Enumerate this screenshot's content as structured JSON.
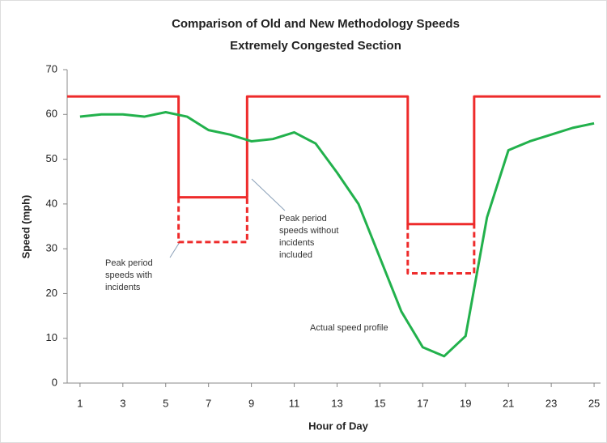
{
  "chart_data": {
    "type": "line",
    "title": [
      "Comparison of Old and New Methodology Speeds",
      "Extremely Congested Section"
    ],
    "xlabel": "Hour of Day",
    "ylabel": "Speed (mph)",
    "xlim": [
      0.4,
      25.3
    ],
    "ylim": [
      0,
      70
    ],
    "xticks": [
      1,
      3,
      5,
      7,
      9,
      11,
      13,
      15,
      17,
      19,
      21,
      23,
      25
    ],
    "yticks": [
      0,
      10,
      20,
      30,
      40,
      50,
      60,
      70
    ],
    "grid": false,
    "series": [
      {
        "color": "#ee2b2b",
        "dash": false,
        "x": [
          0.4,
          5.6,
          5.6,
          8.8,
          8.8,
          16.3,
          16.3,
          19.4,
          19.4,
          25.3
        ],
        "values": [
          64,
          64,
          41.5,
          41.5,
          64,
          64,
          35.5,
          35.5,
          64,
          64
        ]
      },
      {
        "color": "#ee2b2b",
        "dash": true,
        "x": [
          5.6,
          5.6,
          8.8,
          8.8
        ],
        "values": [
          41.5,
          31.5,
          31.5,
          41.5
        ]
      },
      {
        "color": "#ee2b2b",
        "dash": true,
        "x": [
          16.3,
          16.3,
          19.4,
          19.4
        ],
        "values": [
          35.5,
          24.5,
          24.5,
          35.5
        ]
      },
      {
        "color": "#22b14c",
        "dash": false,
        "x": [
          1,
          2,
          3,
          4,
          5,
          6,
          7,
          8,
          9,
          10,
          11,
          12,
          13,
          14,
          15,
          16,
          17,
          18,
          19,
          20,
          21,
          22,
          23,
          24,
          25
        ],
        "values": [
          59.5,
          60,
          60,
          59.5,
          60.5,
          59.5,
          56.5,
          55.5,
          54,
          54.5,
          56,
          53.5,
          47,
          40,
          28,
          16,
          8,
          6,
          10.5,
          37,
          52,
          54,
          55.5,
          57,
          58
        ]
      }
    ],
    "annotations": [
      {
        "lines": [
          "Peak period",
          "speeds with",
          "incidents"
        ]
      },
      {
        "lines": [
          "Peak period",
          "speeds without",
          "incidents",
          "included"
        ]
      },
      {
        "lines": [
          "Actual speed profile"
        ]
      }
    ]
  }
}
